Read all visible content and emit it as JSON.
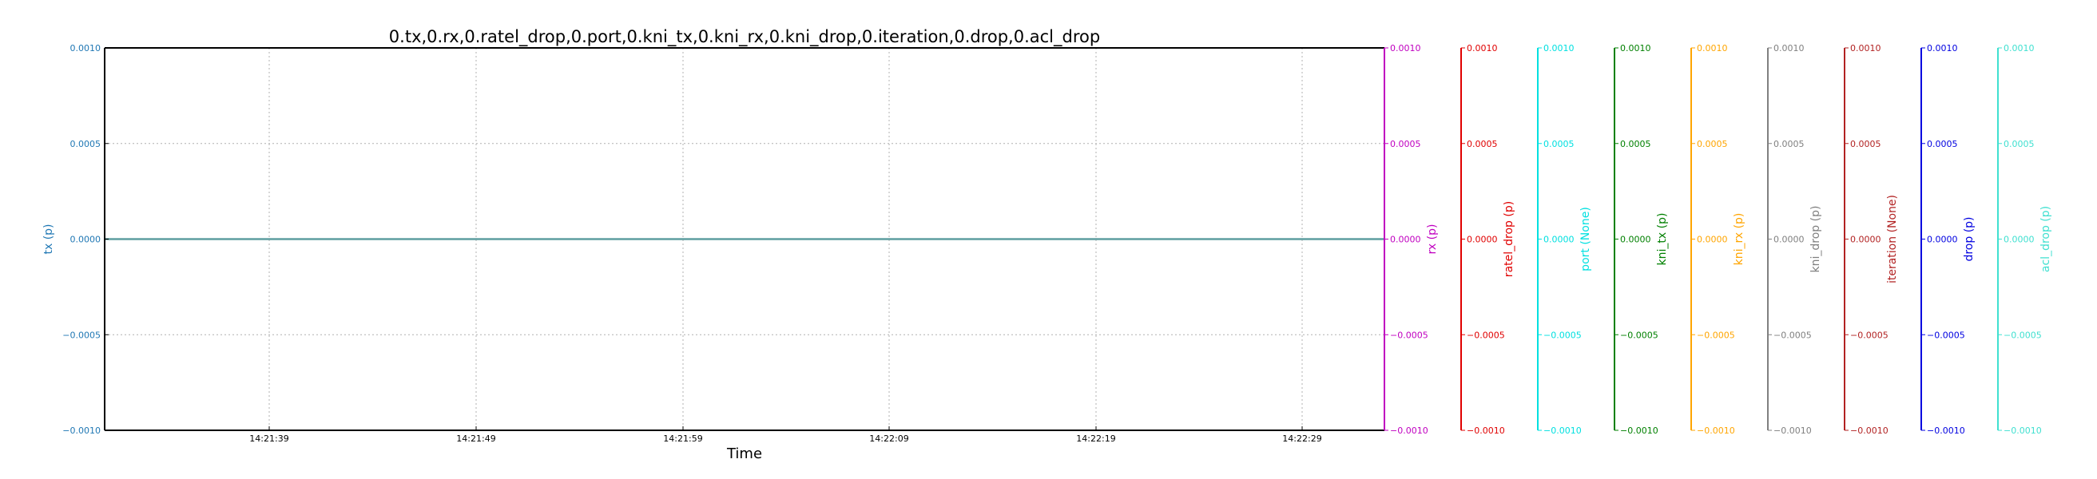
{
  "chart_data": {
    "type": "line",
    "title": "0.tx,0.rx,0.ratel_drop,0.port,0.kni_tx,0.kni_rx,0.kni_drop,0.iteration,0.drop,0.acl_drop",
    "xlabel": "Time",
    "x_ticks": [
      "14:21:39",
      "14:21:49",
      "14:21:59",
      "14:22:09",
      "14:22:19",
      "14:22:29"
    ],
    "y_ticks": [
      "0.0010",
      "0.0005",
      "0.0000",
      "−0.0005",
      "−0.0010"
    ],
    "ylim": [
      -0.001,
      0.001
    ],
    "grid": true,
    "axes": [
      {
        "label": "tx (p)",
        "color": "#1f77b4"
      },
      {
        "label": "rx (p)",
        "color": "#c000c0"
      },
      {
        "label": "ratel_drop (p)",
        "color": "#e00000"
      },
      {
        "label": "port (None)",
        "color": "#00e0e0"
      },
      {
        "label": "kni_tx (p)",
        "color": "#008000"
      },
      {
        "label": "kni_rx (p)",
        "color": "#ffa500"
      },
      {
        "label": "kni_drop (p)",
        "color": "#808080"
      },
      {
        "label": "iteration (None)",
        "color": "#b22222"
      },
      {
        "label": "drop (p)",
        "color": "#0000e0"
      },
      {
        "label": "acl_drop (p)",
        "color": "#40e0d0"
      }
    ],
    "series": [
      {
        "name": "0.tx",
        "values": [
          0,
          0,
          0,
          0,
          0,
          0,
          0
        ]
      }
    ]
  }
}
